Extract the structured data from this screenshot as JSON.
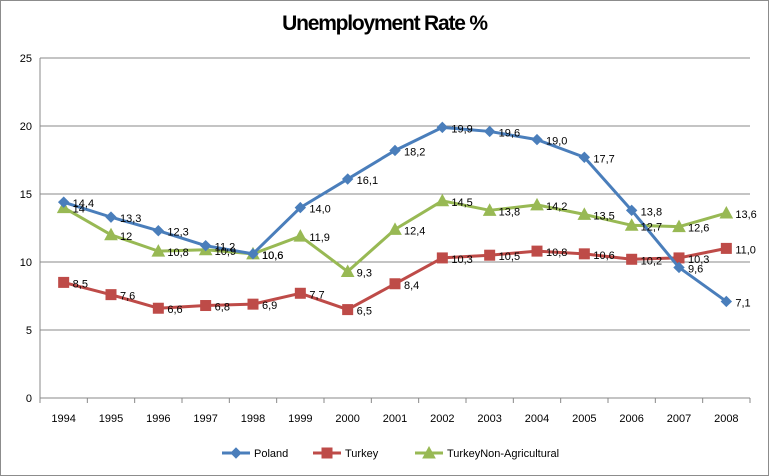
{
  "chart_data": {
    "type": "line",
    "title": "Unemployment Rate %",
    "xlabel": "",
    "ylabel": "",
    "x": [
      "1994",
      "1995",
      "1996",
      "1997",
      "1998",
      "1999",
      "2000",
      "2001",
      "2002",
      "2003",
      "2004",
      "2005",
      "2006",
      "2007",
      "2008"
    ],
    "ylim": [
      0,
      25
    ],
    "yticks": [
      "0",
      "5",
      "10",
      "15",
      "20",
      "25"
    ],
    "grid": true,
    "legend_position": "bottom",
    "series": [
      {
        "name": "Poland",
        "color": "#4a7ebb",
        "marker": "diamond",
        "values": [
          14.4,
          13.3,
          12.3,
          11.2,
          10.6,
          14.0,
          16.1,
          18.2,
          19.9,
          19.6,
          19.0,
          17.7,
          13.8,
          9.6,
          7.1
        ],
        "labels": [
          "14,4",
          "13,3",
          "12,3",
          "11,2",
          "10,6",
          "14,0",
          "16,1",
          "18,2",
          "19,9",
          "19,6",
          "19,0",
          "17,7",
          "13,8",
          "9,6",
          "7,1"
        ]
      },
      {
        "name": "Turkey",
        "color": "#be4b48",
        "marker": "square",
        "values": [
          8.5,
          7.6,
          6.6,
          6.8,
          6.9,
          7.7,
          6.5,
          8.4,
          10.3,
          10.5,
          10.8,
          10.6,
          10.2,
          10.3,
          11.0
        ],
        "labels": [
          "8,5",
          "7,6",
          "6,6",
          "6,8",
          "6,9",
          "7,7",
          "6,5",
          "8,4",
          "10,3",
          "10,5",
          "10,8",
          "10,6",
          "10,2",
          "10,3",
          "11,0"
        ]
      },
      {
        "name": "TurkeyNon-Agricultural",
        "color": "#98b954",
        "marker": "triangle",
        "values": [
          14.0,
          12.0,
          10.8,
          10.9,
          10.6,
          11.9,
          9.3,
          12.4,
          14.5,
          13.8,
          14.2,
          13.5,
          12.7,
          12.6,
          13.6
        ],
        "labels": [
          "14",
          "12",
          "10,8",
          "10,9",
          "10,6",
          "11,9",
          "9,3",
          "12,4",
          "14,5",
          "13,8",
          "14,2",
          "13,5",
          "12,7",
          "12,6",
          "13,6"
        ]
      }
    ]
  }
}
